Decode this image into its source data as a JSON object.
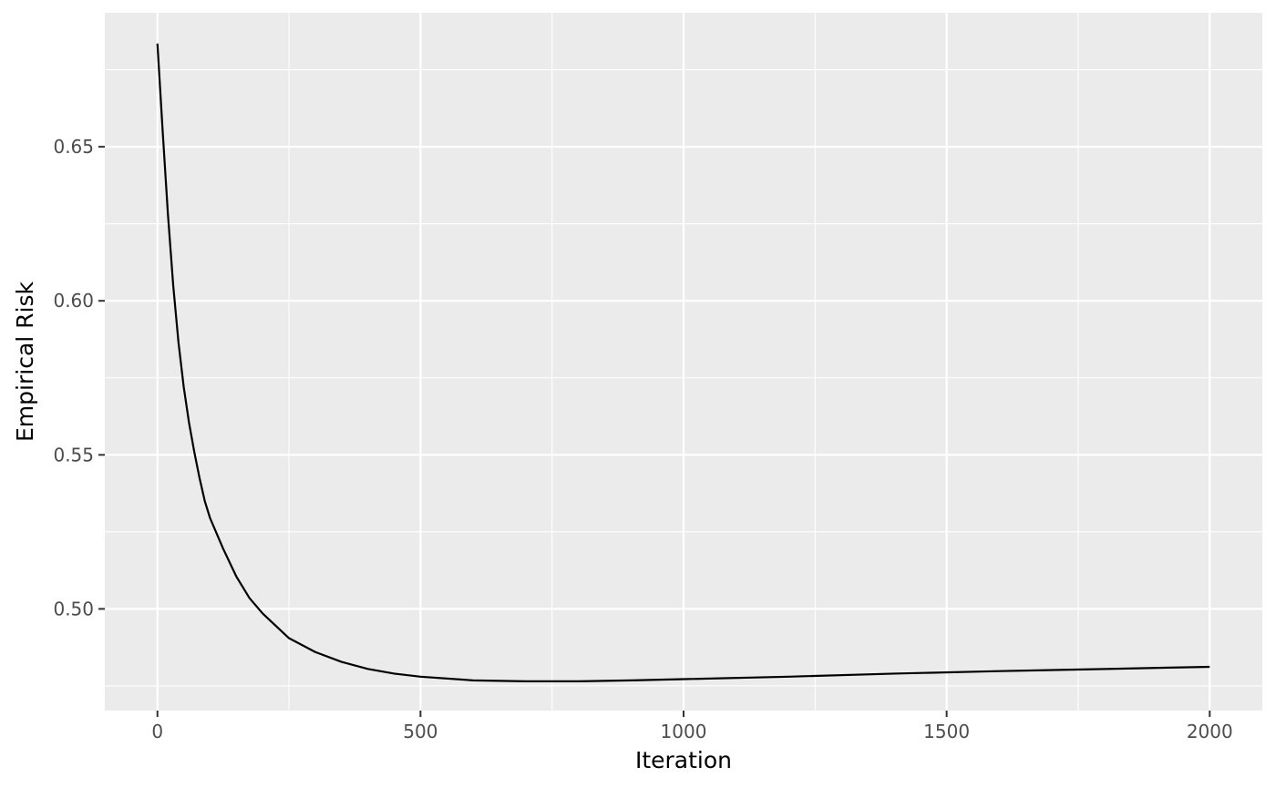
{
  "chart_data": {
    "type": "line",
    "title": "",
    "xlabel": "Iteration",
    "ylabel": "Empirical Risk",
    "xlim": [
      -100,
      2100
    ],
    "ylim": [
      0.467,
      0.6935
    ],
    "x_ticks": [
      0,
      500,
      1000,
      1500,
      2000
    ],
    "x_tick_labels": [
      "0",
      "500",
      "1000",
      "1500",
      "2000"
    ],
    "y_ticks": [
      0.5,
      0.55,
      0.6,
      0.65
    ],
    "y_tick_labels": [
      "0.50",
      "0.55",
      "0.60",
      "0.65"
    ],
    "grid": true,
    "legend": "none",
    "colors": {
      "panel": "#ebebeb",
      "grid_major": "#ffffff",
      "line": "#000000",
      "tick_text": "#4d4d4d",
      "tick_mark": "#333333"
    },
    "series": [
      {
        "x": [
          0,
          10,
          20,
          30,
          40,
          50,
          60,
          70,
          80,
          90,
          100,
          110,
          125,
          150,
          175,
          200,
          250,
          300,
          350,
          400,
          450,
          500,
          600,
          700,
          800,
          900,
          1000,
          1200,
          1400,
          1600,
          1800,
          2000
        ],
        "y": [
          0.6835,
          0.655,
          0.628,
          0.605,
          0.5865,
          0.572,
          0.5605,
          0.551,
          0.5425,
          0.535,
          0.5295,
          0.5255,
          0.5195,
          0.5105,
          0.5035,
          0.4985,
          0.4905,
          0.486,
          0.4828,
          0.4805,
          0.479,
          0.478,
          0.4768,
          0.4765,
          0.4765,
          0.4768,
          0.4772,
          0.478,
          0.479,
          0.4798,
          0.4805,
          0.4812
        ]
      }
    ]
  }
}
